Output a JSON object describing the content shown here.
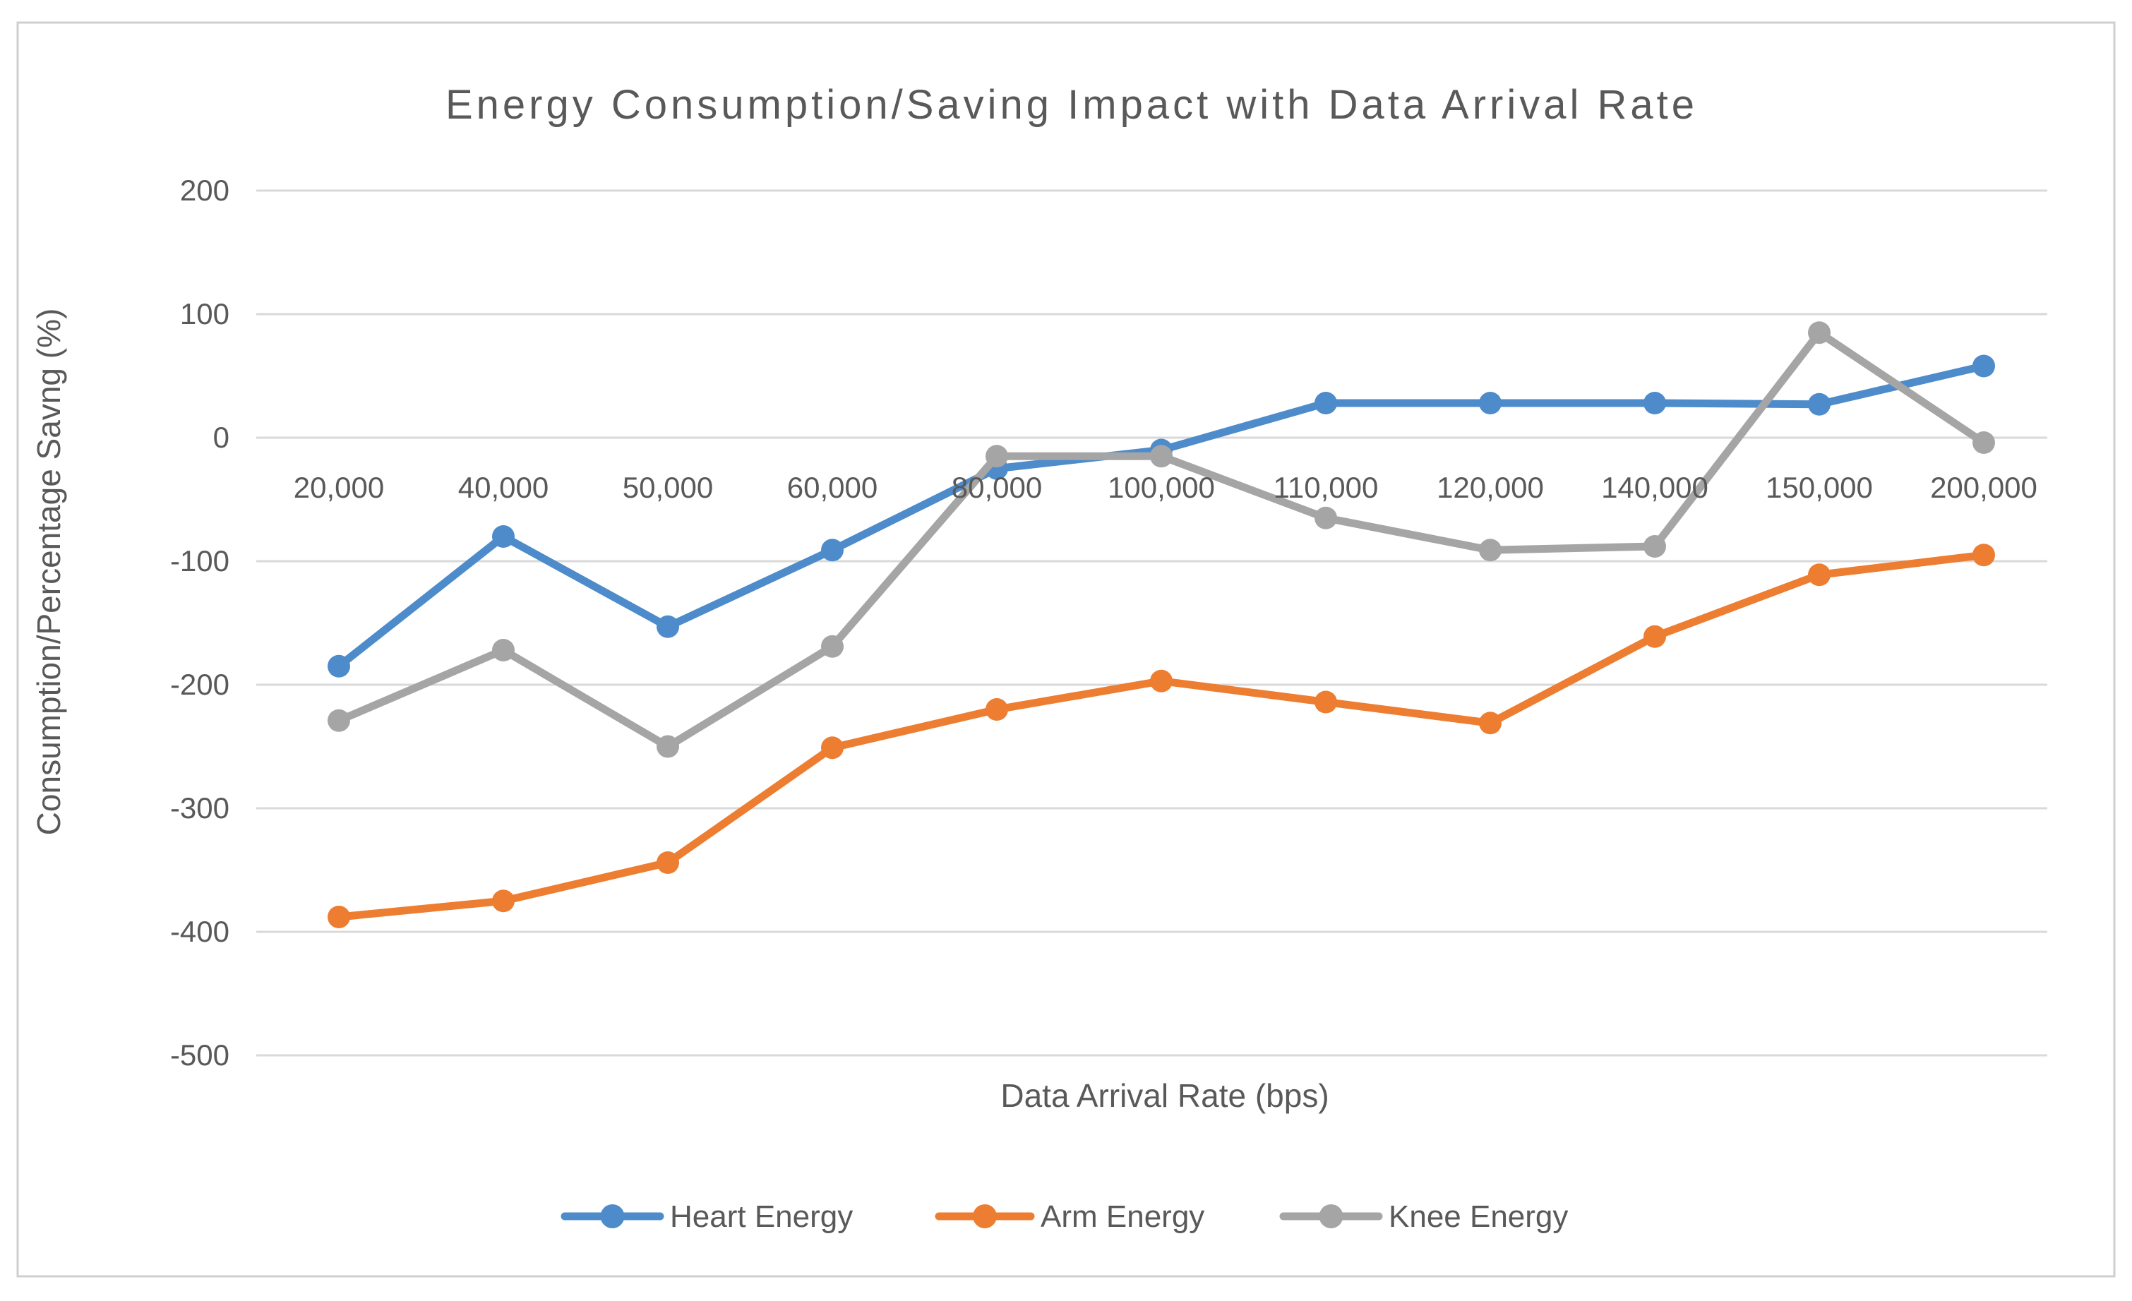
{
  "chart_data": {
    "type": "line",
    "title": "Energy Consumption/Saving Impact with Data Arrival Rate",
    "xlabel": "Data Arrival Rate (bps)",
    "ylabel": "Consumption/Percentage Savng (%)",
    "categories": [
      "20,000",
      "40,000",
      "50,000",
      "60,000",
      "80,000",
      "100,000",
      "110,000",
      "120,000",
      "140,000",
      "150,000",
      "200,000"
    ],
    "yticks": [
      200,
      100,
      0,
      -100,
      -200,
      -300,
      -400,
      -500
    ],
    "ylim": [
      -500,
      200
    ],
    "grid": true,
    "legend_position": "bottom",
    "series": [
      {
        "name": "Heart Energy",
        "color": "#4E8BCB",
        "values": [
          -185,
          -80,
          -153,
          -91,
          -25,
          -10,
          28,
          28,
          28,
          27,
          58
        ]
      },
      {
        "name": "Arm Energy",
        "color": "#ED7D31",
        "values": [
          -388,
          -375,
          -344,
          -251,
          -220,
          -197,
          -214,
          -231,
          -161,
          -111,
          -95
        ]
      },
      {
        "name": "Knee Energy",
        "color": "#A5A5A5",
        "values": [
          -229,
          -172,
          -250,
          -169,
          -15,
          -15,
          -65,
          -91,
          -88,
          85,
          -4
        ]
      }
    ],
    "colors": {
      "text": "#595959",
      "gridline": "#D9D9D9",
      "frame_border": "#D0CECE",
      "background": "#FFFFFF"
    }
  }
}
